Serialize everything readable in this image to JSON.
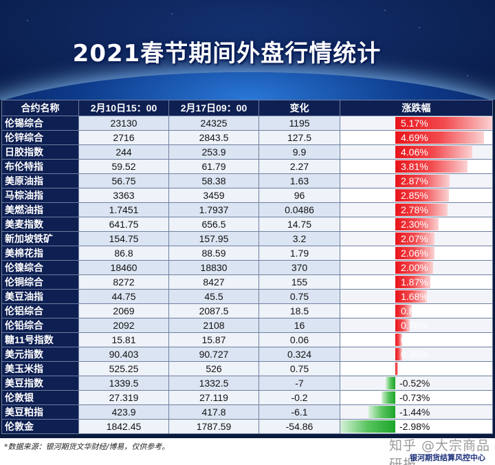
{
  "title": "2021春节期间外盘行情统计",
  "headers": [
    "合约名称",
    "2月10日15：00",
    "2月17日09：00",
    "变化",
    "涨跌幅"
  ],
  "rows": [
    {
      "name": "伦锡综合",
      "before": "23130",
      "after": "24325",
      "change": "1195",
      "pct": "5.17%",
      "pct_value": 5.17
    },
    {
      "name": "伦锌综合",
      "before": "2716",
      "after": "2843.5",
      "change": "127.5",
      "pct": "4.69%",
      "pct_value": 4.69
    },
    {
      "name": "日胶指数",
      "before": "244",
      "after": "253.9",
      "change": "9.9",
      "pct": "4.06%",
      "pct_value": 4.06
    },
    {
      "name": "布伦特指",
      "before": "59.52",
      "after": "61.79",
      "change": "2.27",
      "pct": "3.81%",
      "pct_value": 3.81
    },
    {
      "name": "美原油指",
      "before": "56.75",
      "after": "58.38",
      "change": "1.63",
      "pct": "2.87%",
      "pct_value": 2.87
    },
    {
      "name": "马棕油指",
      "before": "3363",
      "after": "3459",
      "change": "96",
      "pct": "2.85%",
      "pct_value": 2.85
    },
    {
      "name": "美燃油指",
      "before": "1.7451",
      "after": "1.7937",
      "change": "0.0486",
      "pct": "2.78%",
      "pct_value": 2.78
    },
    {
      "name": "美麦指数",
      "before": "641.75",
      "after": "656.5",
      "change": "14.75",
      "pct": "2.30%",
      "pct_value": 2.3
    },
    {
      "name": "新加坡铁矿",
      "before": "154.75",
      "after": "157.95",
      "change": "3.2",
      "pct": "2.07%",
      "pct_value": 2.07
    },
    {
      "name": "美棉花指",
      "before": "86.8",
      "after": "88.59",
      "change": "1.79",
      "pct": "2.06%",
      "pct_value": 2.06
    },
    {
      "name": "伦镍综合",
      "before": "18460",
      "after": "18830",
      "change": "370",
      "pct": "2.00%",
      "pct_value": 2.0
    },
    {
      "name": "伦铜综合",
      "before": "8272",
      "after": "8427",
      "change": "155",
      "pct": "1.87%",
      "pct_value": 1.87
    },
    {
      "name": "美豆油指",
      "before": "44.75",
      "after": "45.5",
      "change": "0.75",
      "pct": "1.68%",
      "pct_value": 1.68
    },
    {
      "name": "伦铝综合",
      "before": "2069",
      "after": "2087.5",
      "change": "18.5",
      "pct": "0.89%",
      "pct_value": 0.89
    },
    {
      "name": "伦铅综合",
      "before": "2092",
      "after": "2108",
      "change": "16",
      "pct": "0.76%",
      "pct_value": 0.76
    },
    {
      "name": "糖11号指数",
      "before": "15.81",
      "after": "15.87",
      "change": "0.06",
      "pct": "0.38%",
      "pct_value": 0.38
    },
    {
      "name": "美元指数",
      "before": "90.403",
      "after": "90.727",
      "change": "0.324",
      "pct": "0.36%",
      "pct_value": 0.36
    },
    {
      "name": "美玉米指",
      "before": "525.25",
      "after": "526",
      "change": "0.75",
      "pct": "0.14%",
      "pct_value": 0.14
    },
    {
      "name": "美豆指数",
      "before": "1339.5",
      "after": "1332.5",
      "change": "-7",
      "pct": "-0.52%",
      "pct_value": -0.52
    },
    {
      "name": "伦敦银",
      "before": "27.319",
      "after": "27.119",
      "change": "-0.2",
      "pct": "-0.73%",
      "pct_value": -0.73
    },
    {
      "name": "美豆粕指",
      "before": "423.9",
      "after": "417.8",
      "change": "-6.1",
      "pct": "-1.44%",
      "pct_value": -1.44
    },
    {
      "name": "伦敦金",
      "before": "1842.45",
      "after": "1787.59",
      "change": "-54.86",
      "pct": "-2.98%",
      "pct_value": -2.98
    }
  ],
  "colors": {
    "up": "#e8151b",
    "down": "#1ea52a",
    "header_bg": "#0e1f52"
  },
  "footer": {
    "source": "*数据来源：银河期货文华财经/博易，仅供参考。",
    "watermark": "知乎 @大宗商品研报",
    "org": "银河期货结算风控中心"
  }
}
